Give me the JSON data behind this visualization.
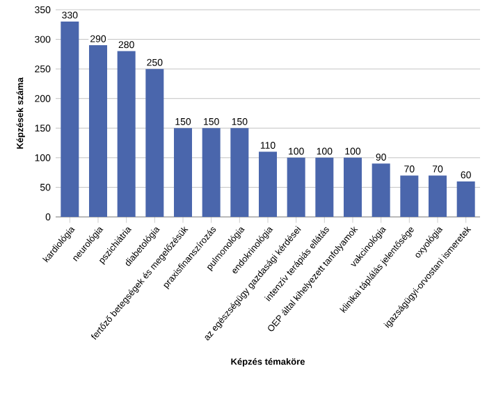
{
  "chart_data": {
    "type": "bar",
    "xlabel": "Képzés témaköre",
    "ylabel": "Képzések száma",
    "categories": [
      "kardiológia",
      "neurológia",
      "pszichiátria",
      "diabetológia",
      "fertőző betegségek és megelőzésük",
      "praxisfinanszírozás",
      "pulmonológia",
      "endokrinológia",
      "az egészségügy gazdasági kérdései",
      "intenzív terápiás ellátás",
      "OEP által kihelyezett tanfolyamok",
      "vakcinológia",
      "klinikai táplálás jelentősége",
      "oxyológia",
      "igazságügyi-orvostani ismeretek"
    ],
    "values": [
      330,
      290,
      280,
      250,
      150,
      150,
      150,
      110,
      100,
      100,
      100,
      90,
      70,
      70,
      60
    ],
    "color": "#4a66ac",
    "ylim": [
      0,
      350
    ],
    "yticks": [
      0,
      50,
      100,
      150,
      200,
      250,
      300,
      350
    ],
    "grid": "y",
    "data_labels": true
  }
}
